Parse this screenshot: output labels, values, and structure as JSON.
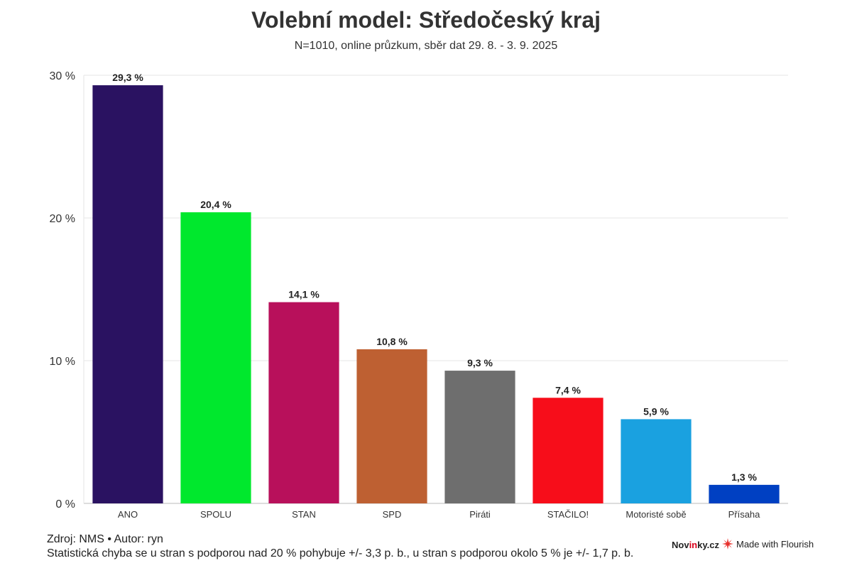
{
  "title": "Volební model: Středočeský kraj",
  "subtitle": "N=1010, online průzkum, sběr dat 29. 8. - 3. 9. 2025",
  "footer": {
    "source": "Zdroj: NMS • Autor: ryn",
    "note": "Statistická chyba se u stran s podporou nad 20 % pohybuje +/- 3,3 p. b., u stran s podporou okolo 5 % je +/- 1,7 p. b.",
    "brand_prefix": "Nov",
    "brand_accent": "in",
    "brand_suffix": "ky.cz",
    "flourish_label": "Made with Flourish"
  },
  "chart_data": {
    "type": "bar",
    "title": "Volební model: Středočeský kraj",
    "subtitle": "N=1010, online průzkum, sběr dat 29. 8. - 3. 9. 2025",
    "xlabel": "",
    "ylabel": "",
    "ylim": [
      0,
      30
    ],
    "yticks": [
      0,
      10,
      20,
      30
    ],
    "ytick_labels": [
      "0 %",
      "10 %",
      "20 %",
      "30 %"
    ],
    "grid": true,
    "categories": [
      "ANO",
      "SPOLU",
      "STAN",
      "SPD",
      "Piráti",
      "STAČILO!",
      "Motoristé sobě",
      "Přísaha"
    ],
    "values": [
      29.3,
      20.4,
      14.1,
      10.8,
      9.3,
      7.4,
      5.9,
      1.3
    ],
    "value_labels": [
      "29,3 %",
      "20,4 %",
      "14,1 %",
      "10,8 %",
      "9,3 %",
      "7,4 %",
      "5,9 %",
      "1,3 %"
    ],
    "colors": [
      "#2a1261",
      "#00e82d",
      "#b8105b",
      "#be6032",
      "#6e6e6e",
      "#f70d1a",
      "#1aa1e0",
      "#0040c2"
    ]
  }
}
